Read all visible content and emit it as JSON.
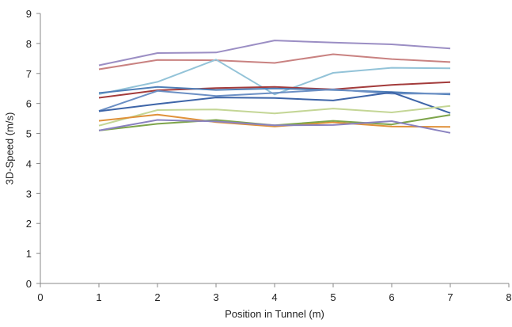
{
  "chart_data": {
    "type": "line",
    "title": "",
    "xlabel": "Position in Tunnel (m)",
    "ylabel": "3D-Speed (m/s)",
    "xlim": [
      0,
      8
    ],
    "ylim": [
      0,
      9
    ],
    "x_ticks": [
      0,
      1,
      2,
      3,
      4,
      5,
      6,
      7,
      8
    ],
    "y_ticks": [
      0,
      1,
      2,
      3,
      4,
      5,
      6,
      7,
      8,
      9
    ],
    "grid": false,
    "legend": "none",
    "x": [
      1,
      2,
      3,
      4,
      5,
      6,
      7
    ],
    "series": [
      {
        "color": "#9b8ec4",
        "values": [
          7.27,
          7.68,
          7.7,
          8.1,
          8.03,
          7.97,
          7.83
        ]
      },
      {
        "color": "#c98281",
        "values": [
          7.14,
          7.45,
          7.44,
          7.35,
          7.64,
          7.48,
          7.38
        ]
      },
      {
        "color": "#93c3d8",
        "values": [
          6.31,
          6.72,
          7.46,
          6.3,
          7.02,
          7.19,
          7.17
        ]
      },
      {
        "color": "#a33b3b",
        "values": [
          6.19,
          6.44,
          6.51,
          6.55,
          6.47,
          6.62,
          6.71
        ]
      },
      {
        "color": "#4f7fb8",
        "values": [
          6.35,
          6.55,
          6.45,
          6.5,
          6.45,
          6.38,
          6.3
        ]
      },
      {
        "color": "#6b8fc4",
        "values": [
          5.75,
          6.42,
          6.25,
          6.35,
          6.47,
          6.33,
          6.33
        ]
      },
      {
        "color": "#3e65a8",
        "values": [
          5.74,
          5.98,
          6.2,
          6.18,
          6.1,
          6.37,
          5.68
        ]
      },
      {
        "color": "#c4d696",
        "values": [
          5.26,
          5.78,
          5.8,
          5.67,
          5.83,
          5.7,
          5.92
        ]
      },
      {
        "color": "#e0913a",
        "values": [
          5.42,
          5.63,
          5.38,
          5.23,
          5.37,
          5.23,
          5.22
        ]
      },
      {
        "color": "#7da44a",
        "values": [
          5.1,
          5.32,
          5.45,
          5.27,
          5.42,
          5.3,
          5.62
        ]
      },
      {
        "color": "#8a82c0",
        "values": [
          5.1,
          5.45,
          5.4,
          5.27,
          5.28,
          5.41,
          5.02
        ]
      }
    ]
  }
}
